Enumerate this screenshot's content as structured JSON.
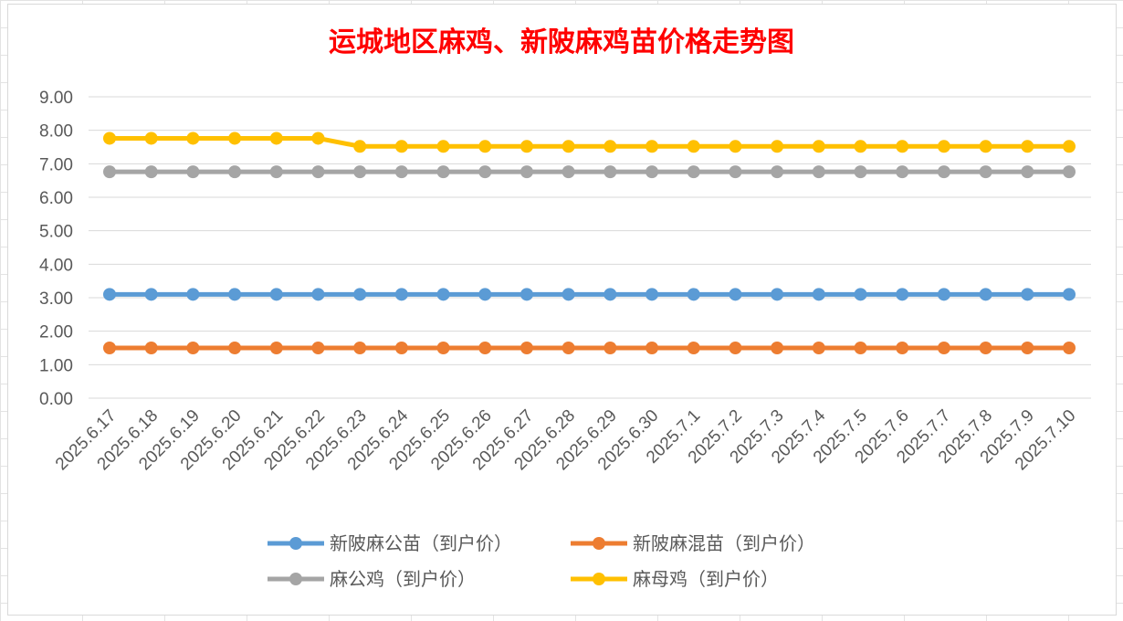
{
  "chart_data": {
    "type": "line",
    "title": "运城地区麻鸡、新陂麻鸡苗价格走势图",
    "xlabel": "",
    "ylabel": "",
    "ylim": [
      0,
      9
    ],
    "y_ticks": [
      "0.00",
      "1.00",
      "2.00",
      "3.00",
      "4.00",
      "5.00",
      "6.00",
      "7.00",
      "8.00",
      "9.00"
    ],
    "grid": true,
    "legend_position": "bottom",
    "categories": [
      "2025.6.17",
      "2025.6.18",
      "2025.6.19",
      "2025.6.20",
      "2025.6.21",
      "2025.6.22",
      "2025.6.23",
      "2025.6.24",
      "2025.6.25",
      "2025.6.26",
      "2025.6.27",
      "2025.6.28",
      "2025.6.29",
      "2025.6.30",
      "2025.7.1",
      "2025.7.2",
      "2025.7.3",
      "2025.7.4",
      "2025.7.5",
      "2025.7.6",
      "2025.7.7",
      "2025.7.8",
      "2025.7.9",
      "2025.7.10"
    ],
    "series": [
      {
        "name": "新陂麻公苗（到户价）",
        "color": "#5b9bd5",
        "values": [
          3.1,
          3.1,
          3.1,
          3.1,
          3.1,
          3.1,
          3.1,
          3.1,
          3.1,
          3.1,
          3.1,
          3.1,
          3.1,
          3.1,
          3.1,
          3.1,
          3.1,
          3.1,
          3.1,
          3.1,
          3.1,
          3.1,
          3.1,
          3.1
        ]
      },
      {
        "name": "新陂麻混苗（到户价）",
        "color": "#ed7d31",
        "values": [
          1.5,
          1.5,
          1.5,
          1.5,
          1.5,
          1.5,
          1.5,
          1.5,
          1.5,
          1.5,
          1.5,
          1.5,
          1.5,
          1.5,
          1.5,
          1.5,
          1.5,
          1.5,
          1.5,
          1.5,
          1.5,
          1.5,
          1.5,
          1.5
        ]
      },
      {
        "name": "麻公鸡（到户价）",
        "color": "#a5a5a5",
        "values": [
          6.76,
          6.76,
          6.76,
          6.76,
          6.76,
          6.76,
          6.76,
          6.76,
          6.76,
          6.76,
          6.76,
          6.76,
          6.76,
          6.76,
          6.76,
          6.76,
          6.76,
          6.76,
          6.76,
          6.76,
          6.76,
          6.76,
          6.76,
          6.76
        ]
      },
      {
        "name": "麻母鸡（到户价）",
        "color": "#ffc000",
        "values": [
          7.76,
          7.76,
          7.76,
          7.76,
          7.76,
          7.76,
          7.52,
          7.52,
          7.52,
          7.52,
          7.52,
          7.52,
          7.52,
          7.52,
          7.52,
          7.52,
          7.52,
          7.52,
          7.52,
          7.52,
          7.52,
          7.52,
          7.52,
          7.52
        ]
      }
    ]
  }
}
